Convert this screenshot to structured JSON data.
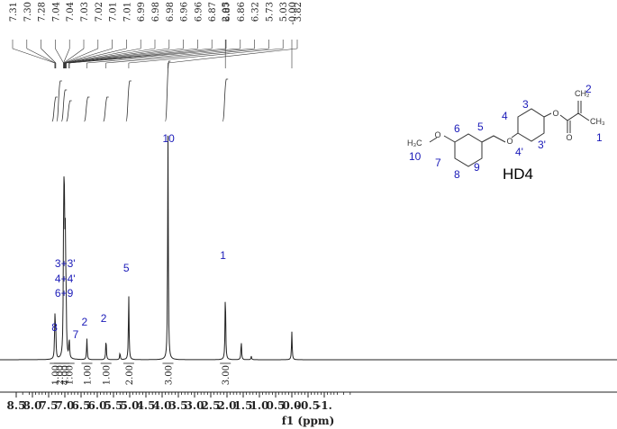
{
  "chart_data": {
    "type": "nmr-spectrum",
    "xlabel": "f1 (ppm)",
    "xlim": [
      8.7,
      -1.0
    ],
    "xticks": [
      "8.5",
      "8.0",
      "7.5",
      "7.0",
      "6.5",
      "6.0",
      "5.5",
      "5.0",
      "4.5",
      "4.0",
      "3.5",
      "3.0",
      "2.5",
      "2.0",
      "1.5",
      "1.0",
      "0.5",
      "0.0",
      "-0.5",
      "-1."
    ],
    "peak_list_group1": [
      "7.31",
      "7.30",
      "7.28",
      "7.04",
      "7.04",
      "7.03",
      "7.02",
      "7.01",
      "7.01",
      "6.99",
      "6.98",
      "6.98",
      "6.96",
      "6.96",
      "6.87",
      "6.87",
      "6.86",
      "6.32",
      "5.73",
      "5.03",
      "3.82"
    ],
    "peak_list_group2": [
      "2.05"
    ],
    "peak_list_group3": [
      "-0.00"
    ],
    "peaks": [
      {
        "ppm": 7.31,
        "height": 0.1
      },
      {
        "ppm": 7.3,
        "height": 0.11
      },
      {
        "ppm": 7.28,
        "height": 0.09
      },
      {
        "ppm": 7.04,
        "height": 0.3
      },
      {
        "ppm": 7.03,
        "height": 0.31
      },
      {
        "ppm": 7.02,
        "height": 0.28
      },
      {
        "ppm": 7.01,
        "height": 0.3
      },
      {
        "ppm": 6.99,
        "height": 0.26
      },
      {
        "ppm": 6.98,
        "height": 0.27
      },
      {
        "ppm": 6.96,
        "height": 0.16
      },
      {
        "ppm": 6.87,
        "height": 0.05
      },
      {
        "ppm": 6.86,
        "height": 0.04
      },
      {
        "ppm": 6.32,
        "height": 0.09
      },
      {
        "ppm": 5.73,
        "height": 0.09
      },
      {
        "ppm": 5.3,
        "height": 0.03
      },
      {
        "ppm": 5.03,
        "height": 0.28
      },
      {
        "ppm": 3.82,
        "height": 0.96
      },
      {
        "ppm": 2.05,
        "height": 0.3
      },
      {
        "ppm": 1.56,
        "height": 0.08
      },
      {
        "ppm": 1.25,
        "height": 0.015
      },
      {
        "ppm": 0.0,
        "height": 0.12
      }
    ],
    "integrals": [
      {
        "label": "1.00",
        "ppm": 7.3
      },
      {
        "label": "2.00",
        "ppm": 7.17
      },
      {
        "label": "4.00",
        "ppm": 7.02
      },
      {
        "label": "1.00",
        "ppm": 6.87
      },
      {
        "label": "1.00",
        "ppm": 6.32
      },
      {
        "label": "1.00",
        "ppm": 5.73
      },
      {
        "label": "2.00",
        "ppm": 5.03
      },
      {
        "label": "3.00",
        "ppm": 3.82
      },
      {
        "label": "3.00",
        "ppm": 2.05
      }
    ],
    "assignments": [
      {
        "label": "8",
        "ppm": 7.3
      },
      {
        "label": "3+3'",
        "ppm": 7.03
      },
      {
        "label": "4+4'",
        "ppm": 7.03
      },
      {
        "label": "6+9",
        "ppm": 7.03
      },
      {
        "label": "7",
        "ppm": 6.87
      },
      {
        "label": "2",
        "ppm": 6.32
      },
      {
        "label": "2",
        "ppm": 5.73
      },
      {
        "label": "5",
        "ppm": 5.03
      },
      {
        "label": "10",
        "ppm": 3.82
      },
      {
        "label": "1",
        "ppm": 2.05
      }
    ],
    "colors": {
      "spectrum": "#222222",
      "assignment": "#1a1ab8",
      "molecule": "#333333"
    }
  },
  "molecule": {
    "name": "HD4",
    "labels": [
      "1",
      "2",
      "3",
      "3'",
      "4",
      "4'",
      "5",
      "6",
      "7",
      "8",
      "9",
      "10"
    ],
    "atoms": [
      "O",
      "O",
      "O",
      "O",
      "H₃C",
      "CH₂",
      "CH₃"
    ]
  }
}
